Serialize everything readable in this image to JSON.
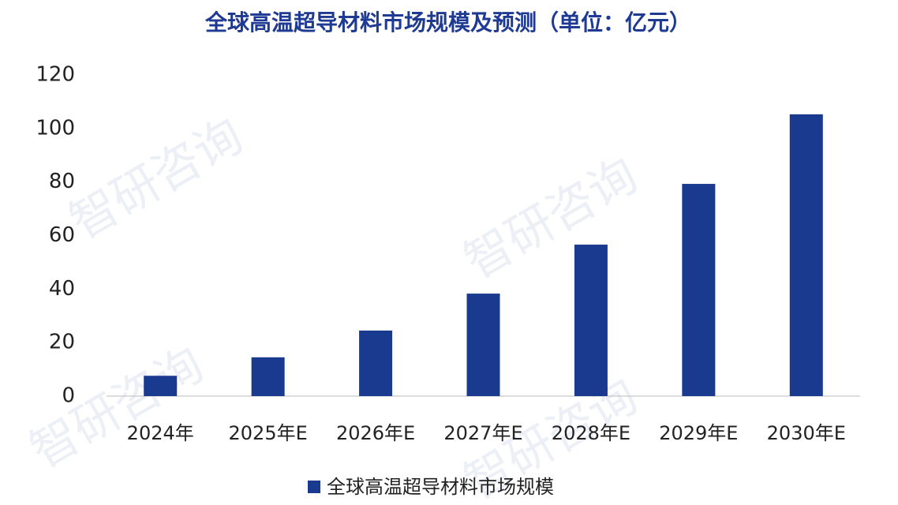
{
  "chart_data": {
    "type": "bar",
    "title": "全球高温超导材料市场规模及预测（单位：亿元）",
    "categories": [
      "2024年",
      "2025年E",
      "2026年E",
      "2027年E",
      "2028年E",
      "2029年E",
      "2030年E"
    ],
    "series": [
      {
        "name": "全球高温超导材料市场规模",
        "color": "#1a3a8f",
        "values": [
          7.6,
          14.5,
          24.5,
          38.3,
          56.6,
          79.3,
          105.3
        ]
      }
    ],
    "ylim": [
      0,
      120
    ],
    "yticks": [
      0,
      20,
      40,
      60,
      80,
      100,
      120
    ],
    "grid": false,
    "legend": "bottom",
    "watermark": "智研咨询"
  }
}
